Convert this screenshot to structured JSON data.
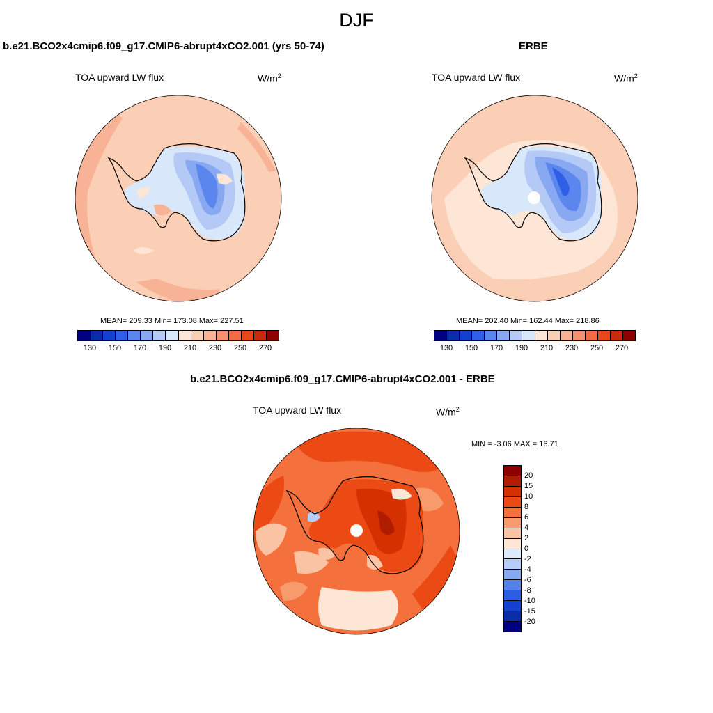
{
  "figure": {
    "title": "DJF"
  },
  "panels": [
    {
      "title": "b.e21.BCO2x4cmip6.f09_g17.CMIP6-abrupt4xCO2.001 (yrs 50-74)",
      "variable": "TOA upward LW flux",
      "units_base": "W/m",
      "units_exp": "2",
      "stats": "MEAN= 209.33  Min= 173.08  Max= 227.51"
    },
    {
      "title": "ERBE",
      "variable": "TOA upward LW flux",
      "units_base": "W/m",
      "units_exp": "2",
      "stats": "MEAN= 202.40  Min= 162.44  Max= 218.86"
    },
    {
      "title": "b.e21.BCO2x4cmip6.f09_g17.CMIP6-abrupt4xCO2.001 - ERBE",
      "variable": "TOA upward LW flux",
      "units_base": "W/m",
      "units_exp": "2",
      "stats": "MIN =  -3.06 MAX =  16.71"
    }
  ],
  "colorbar_top": {
    "colors": [
      "#000080",
      "#0a2ca8",
      "#1440d0",
      "#2f5fe6",
      "#5b86ee",
      "#88a8f2",
      "#b4c9f6",
      "#d9e7fa",
      "#fde6d6",
      "#fbcfb6",
      "#f8b295",
      "#f59070",
      "#f26b45",
      "#e9461c",
      "#c92a0e",
      "#8c0000"
    ],
    "labels": [
      "130",
      "150",
      "170",
      "190",
      "210",
      "230",
      "250",
      "270"
    ]
  },
  "colorbar_diff": {
    "colors": [
      "#8c0000",
      "#b01c00",
      "#d43000",
      "#ec4a14",
      "#f4703c",
      "#f79a6c",
      "#fac4a4",
      "#fde6d6",
      "#dceafa",
      "#b6cdf5",
      "#86a8ee",
      "#5582e8",
      "#2a5ce4",
      "#1440d0",
      "#0a2ca8",
      "#000080"
    ],
    "labels": [
      "20",
      "15",
      "10",
      "8",
      "6",
      "4",
      "2",
      "0",
      "-2",
      "-4",
      "-6",
      "-8",
      "-10",
      "-15",
      "-20"
    ]
  }
}
